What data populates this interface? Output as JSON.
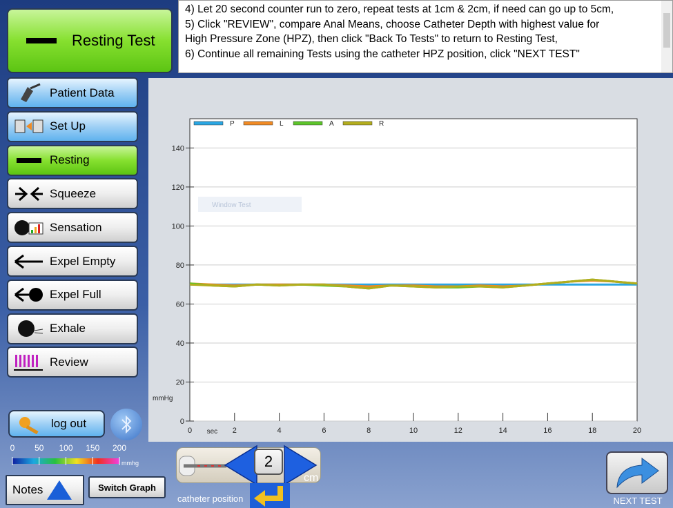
{
  "header": {
    "title": "Resting Test"
  },
  "instructions": [
    "4) Let 20 second counter run to zero, repeat tests at 1cm & 2cm, if need can go up to 5cm,",
    "5) Click \"REVIEW\", compare Anal Means, choose Catheter Depth with highest value for",
    "High Pressure Zone (HPZ), then click \"Back To Tests\" to return to Resting Test,",
    "6) Continue all remaining Tests using the catheter HPZ position, click \"NEXT TEST\""
  ],
  "menu": [
    "Patient Data",
    "Set Up",
    "Resting",
    "Squeeze",
    "Sensation",
    "Expel Empty",
    "Expel Full",
    "Exhale",
    "Review"
  ],
  "logout": "log out",
  "scale": {
    "ticks": [
      0,
      50,
      100,
      150,
      200
    ],
    "unit": "mmhg",
    "range": [
      0,
      200
    ]
  },
  "notes": "Notes",
  "switch_graph": "Switch Graph",
  "catheter": {
    "value": 2,
    "unit": "cm",
    "label": "catheter position"
  },
  "next_test": "NEXT TEST",
  "chart_data": {
    "type": "line",
    "watermark": "Window Test",
    "xlabel": "sec",
    "ylabel": "mmHg",
    "x": [
      0,
      1,
      2,
      3,
      4,
      5,
      6,
      7,
      8,
      9,
      10,
      11,
      12,
      13,
      14,
      15,
      16,
      17,
      18,
      19,
      20
    ],
    "xlim": [
      0,
      20
    ],
    "xticks": [
      0,
      2,
      4,
      6,
      8,
      10,
      12,
      14,
      16,
      18,
      20
    ],
    "ylim": [
      0,
      155
    ],
    "yticks": [
      0,
      20,
      40,
      60,
      80,
      100,
      120,
      140
    ],
    "grid": true,
    "legend": "top-left",
    "series": [
      {
        "name": "P",
        "color": "#2aa6e2",
        "values": [
          70,
          70,
          70,
          70,
          70,
          70,
          70,
          70,
          70,
          70,
          70,
          70,
          70,
          70,
          70,
          70,
          70,
          70,
          70,
          70,
          70
        ]
      },
      {
        "name": "L",
        "color": "#f08a24",
        "values": [
          70.5,
          70,
          69.5,
          70,
          70,
          70,
          70,
          69.5,
          69,
          69.5,
          69.5,
          69,
          69,
          69.5,
          69,
          69.5,
          70.5,
          71.5,
          72,
          71.5,
          70.5
        ]
      },
      {
        "name": "A",
        "color": "#5cc42a",
        "values": [
          70.5,
          69.5,
          69,
          70,
          69.5,
          70,
          69.5,
          69,
          68,
          69.5,
          69,
          68.5,
          68.5,
          69,
          68.5,
          69.5,
          70.5,
          71.5,
          72.5,
          71.5,
          70.5
        ]
      },
      {
        "name": "R",
        "color": "#b3ad1e",
        "values": [
          70,
          69.5,
          69,
          70,
          69.5,
          70,
          70,
          69,
          68,
          69.5,
          69,
          68.5,
          69,
          69,
          68.5,
          69.5,
          70.5,
          71.5,
          72.5,
          71.5,
          70.5
        ]
      }
    ]
  }
}
